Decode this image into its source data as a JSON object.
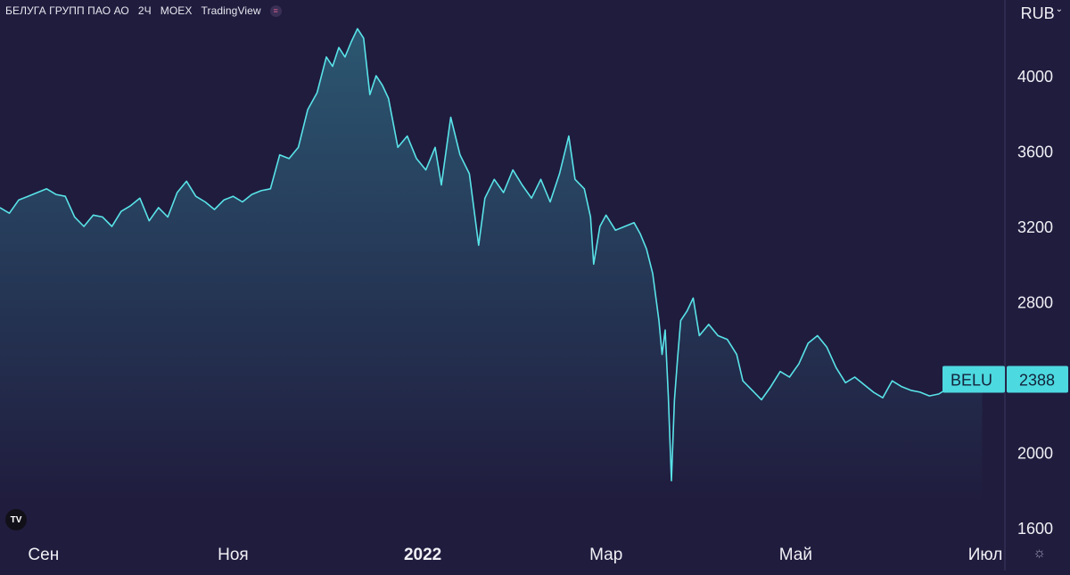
{
  "header": {
    "symbol": "БЕЛУГА ГРУПП ПАО АО",
    "interval": "2Ч",
    "exchange": "MOEX",
    "source": "TradingView"
  },
  "currency_label": "RUB",
  "price_label": {
    "ticker": "BELU",
    "value": "2388"
  },
  "colors": {
    "background": "#201c3e",
    "line": "#59e3e8",
    "price_tag": "#4dd9e0",
    "axis_text": "#f0f0f5",
    "grid_line": "#3d3960"
  },
  "icons": {
    "logo": "tradingview-logo-icon",
    "settings": "gear-icon",
    "menu": "pink-dot-icon"
  },
  "chart_data": {
    "type": "area",
    "title": "",
    "xlabel": "",
    "ylabel": "",
    "ylim": [
      1600,
      4400
    ],
    "yticks": [
      1600,
      2000,
      2400,
      2800,
      3200,
      3600,
      4000
    ],
    "x_ticks": [
      {
        "label": "Сен",
        "date": "2021-09-01"
      },
      {
        "label": "Ноя",
        "date": "2021-11-01"
      },
      {
        "label": "2022",
        "date": "2022-01-01",
        "bold": true
      },
      {
        "label": "Мар",
        "date": "2022-03-01"
      },
      {
        "label": "Май",
        "date": "2022-05-01"
      },
      {
        "label": "Июл",
        "date": "2022-07-01"
      }
    ],
    "x_start": "2021-08-18",
    "x_end": "2022-07-03",
    "series": [
      {
        "points": [
          [
            "2021-08-18",
            3300
          ],
          [
            "2021-08-21",
            3270
          ],
          [
            "2021-08-24",
            3340
          ],
          [
            "2021-08-27",
            3360
          ],
          [
            "2021-08-30",
            3380
          ],
          [
            "2021-09-02",
            3400
          ],
          [
            "2021-09-05",
            3370
          ],
          [
            "2021-09-08",
            3360
          ],
          [
            "2021-09-11",
            3250
          ],
          [
            "2021-09-14",
            3200
          ],
          [
            "2021-09-17",
            3260
          ],
          [
            "2021-09-20",
            3250
          ],
          [
            "2021-09-23",
            3200
          ],
          [
            "2021-09-26",
            3280
          ],
          [
            "2021-09-29",
            3310
          ],
          [
            "2021-10-02",
            3350
          ],
          [
            "2021-10-05",
            3230
          ],
          [
            "2021-10-08",
            3300
          ],
          [
            "2021-10-11",
            3250
          ],
          [
            "2021-10-14",
            3380
          ],
          [
            "2021-10-17",
            3440
          ],
          [
            "2021-10-20",
            3360
          ],
          [
            "2021-10-23",
            3330
          ],
          [
            "2021-10-26",
            3290
          ],
          [
            "2021-10-29",
            3340
          ],
          [
            "2021-11-01",
            3360
          ],
          [
            "2021-11-04",
            3330
          ],
          [
            "2021-11-07",
            3370
          ],
          [
            "2021-11-10",
            3390
          ],
          [
            "2021-11-13",
            3400
          ],
          [
            "2021-11-16",
            3580
          ],
          [
            "2021-11-19",
            3560
          ],
          [
            "2021-11-22",
            3620
          ],
          [
            "2021-11-25",
            3820
          ],
          [
            "2021-11-28",
            3910
          ],
          [
            "2021-12-01",
            4100
          ],
          [
            "2021-12-03",
            4050
          ],
          [
            "2021-12-05",
            4150
          ],
          [
            "2021-12-07",
            4100
          ],
          [
            "2021-12-09",
            4180
          ],
          [
            "2021-12-11",
            4250
          ],
          [
            "2021-12-13",
            4200
          ],
          [
            "2021-12-15",
            3900
          ],
          [
            "2021-12-17",
            4000
          ],
          [
            "2021-12-19",
            3950
          ],
          [
            "2021-12-21",
            3880
          ],
          [
            "2021-12-24",
            3620
          ],
          [
            "2021-12-27",
            3680
          ],
          [
            "2021-12-30",
            3560
          ],
          [
            "2022-01-02",
            3500
          ],
          [
            "2022-01-05",
            3620
          ],
          [
            "2022-01-07",
            3420
          ],
          [
            "2022-01-10",
            3780
          ],
          [
            "2022-01-13",
            3580
          ],
          [
            "2022-01-16",
            3480
          ],
          [
            "2022-01-19",
            3100
          ],
          [
            "2022-01-21",
            3350
          ],
          [
            "2022-01-24",
            3450
          ],
          [
            "2022-01-27",
            3380
          ],
          [
            "2022-01-30",
            3500
          ],
          [
            "2022-02-02",
            3420
          ],
          [
            "2022-02-05",
            3350
          ],
          [
            "2022-02-08",
            3450
          ],
          [
            "2022-02-11",
            3330
          ],
          [
            "2022-02-14",
            3480
          ],
          [
            "2022-02-17",
            3680
          ],
          [
            "2022-02-19",
            3450
          ],
          [
            "2022-02-22",
            3400
          ],
          [
            "2022-02-24",
            3250
          ],
          [
            "2022-02-25",
            3000
          ],
          [
            "2022-02-27",
            3200
          ],
          [
            "2022-03-01",
            3260
          ],
          [
            "2022-03-04",
            3180
          ],
          [
            "2022-03-07",
            3200
          ],
          [
            "2022-03-10",
            3220
          ],
          [
            "2022-03-12",
            3160
          ],
          [
            "2022-03-14",
            3080
          ],
          [
            "2022-03-16",
            2950
          ],
          [
            "2022-03-18",
            2700
          ],
          [
            "2022-03-19",
            2520
          ],
          [
            "2022-03-20",
            2650
          ],
          [
            "2022-03-21",
            2300
          ],
          [
            "2022-03-22",
            1850
          ],
          [
            "2022-03-23",
            2280
          ],
          [
            "2022-03-24",
            2500
          ],
          [
            "2022-03-25",
            2700
          ],
          [
            "2022-03-27",
            2750
          ],
          [
            "2022-03-29",
            2820
          ],
          [
            "2022-03-31",
            2620
          ],
          [
            "2022-04-03",
            2680
          ],
          [
            "2022-04-06",
            2620
          ],
          [
            "2022-04-09",
            2600
          ],
          [
            "2022-04-12",
            2520
          ],
          [
            "2022-04-14",
            2380
          ],
          [
            "2022-04-17",
            2330
          ],
          [
            "2022-04-20",
            2280
          ],
          [
            "2022-04-23",
            2350
          ],
          [
            "2022-04-26",
            2430
          ],
          [
            "2022-04-29",
            2400
          ],
          [
            "2022-05-02",
            2470
          ],
          [
            "2022-05-05",
            2580
          ],
          [
            "2022-05-08",
            2620
          ],
          [
            "2022-05-11",
            2560
          ],
          [
            "2022-05-14",
            2450
          ],
          [
            "2022-05-17",
            2370
          ],
          [
            "2022-05-20",
            2400
          ],
          [
            "2022-05-23",
            2360
          ],
          [
            "2022-05-26",
            2320
          ],
          [
            "2022-05-29",
            2290
          ],
          [
            "2022-06-01",
            2380
          ],
          [
            "2022-06-04",
            2350
          ],
          [
            "2022-06-07",
            2330
          ],
          [
            "2022-06-10",
            2320
          ],
          [
            "2022-06-13",
            2300
          ],
          [
            "2022-06-16",
            2310
          ],
          [
            "2022-06-19",
            2340
          ],
          [
            "2022-06-22",
            2360
          ],
          [
            "2022-06-25",
            2330
          ],
          [
            "2022-06-28",
            2370
          ],
          [
            "2022-06-30",
            2388
          ]
        ]
      }
    ]
  }
}
